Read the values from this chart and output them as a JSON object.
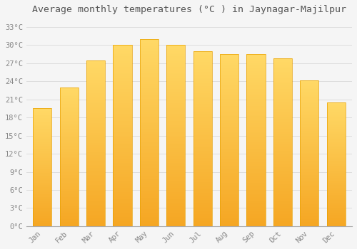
{
  "title": "Average monthly temperatures (°C ) in Jaynagar-Majilpur",
  "months": [
    "Jan",
    "Feb",
    "Mar",
    "Apr",
    "May",
    "Jun",
    "Jul",
    "Aug",
    "Sep",
    "Oct",
    "Nov",
    "Dec"
  ],
  "values": [
    19.5,
    23.0,
    27.5,
    30.0,
    31.0,
    30.0,
    29.0,
    28.5,
    28.5,
    27.8,
    24.2,
    20.5
  ],
  "bar_color_bottom": "#F5A623",
  "bar_color_top": "#FFD966",
  "bar_edge_color": "#E8A000",
  "background_color": "#F5F5F5",
  "grid_color": "#DDDDDD",
  "ytick_labels": [
    "0°C",
    "3°C",
    "6°C",
    "9°C",
    "12°C",
    "15°C",
    "18°C",
    "21°C",
    "24°C",
    "27°C",
    "30°C",
    "33°C"
  ],
  "ytick_values": [
    0,
    3,
    6,
    9,
    12,
    15,
    18,
    21,
    24,
    27,
    30,
    33
  ],
  "ylim": [
    0,
    34.5
  ],
  "title_fontsize": 9.5,
  "tick_fontsize": 7.5,
  "tick_color": "#888888",
  "title_color": "#555555",
  "font_family": "monospace",
  "bar_width": 0.7,
  "figsize": [
    5.0,
    3.5
  ],
  "dpi": 100
}
